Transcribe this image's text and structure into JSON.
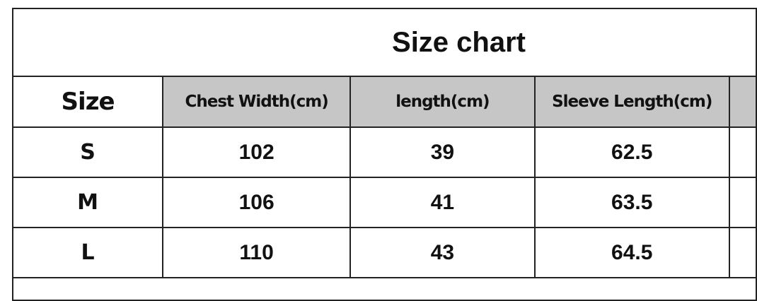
{
  "title": "Size chart",
  "columns": [
    "Size",
    "Chest Width(cm)",
    "length(cm)",
    "Sleeve Length(cm)"
  ],
  "rows": [
    {
      "size": "S",
      "chest": "102",
      "length": "39",
      "sleeve": "62.5"
    },
    {
      "size": "M",
      "chest": "106",
      "length": "41",
      "sleeve": "63.5"
    },
    {
      "size": "L",
      "chest": "110",
      "length": "43",
      "sleeve": "64.5"
    }
  ],
  "colors": {
    "header_bg": "#c6c6c6",
    "border": "#222222"
  }
}
